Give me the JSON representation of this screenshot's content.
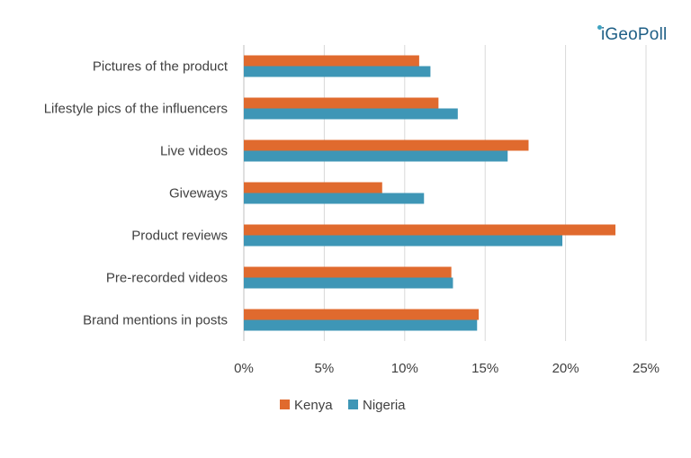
{
  "logo": {
    "text": "GeoPoll",
    "prefix": "i"
  },
  "colors": {
    "kenya": "#E06A2E",
    "nigeria": "#3E96B6",
    "grid": "#D9D9D9",
    "axis": "#BFBFBF",
    "text": "#404040"
  },
  "chart_data": {
    "type": "bar",
    "orientation": "horizontal",
    "categories": [
      "Pictures of the product",
      "Lifestyle pics of the influencers",
      "Live videos",
      "Giveways",
      "Product reviews",
      "Pre-recorded videos",
      "Brand mentions in posts"
    ],
    "series": [
      {
        "name": "Kenya",
        "values": [
          10.9,
          12.1,
          17.7,
          8.6,
          23.1,
          12.9,
          14.6
        ]
      },
      {
        "name": "Nigeria",
        "values": [
          11.6,
          13.3,
          16.4,
          11.2,
          19.8,
          13.0,
          14.5
        ]
      }
    ],
    "xlim": [
      0,
      25
    ],
    "xticks": [
      "0%",
      "5%",
      "10%",
      "15%",
      "20%",
      "25%"
    ],
    "grid": true,
    "legend_position": "bottom"
  }
}
